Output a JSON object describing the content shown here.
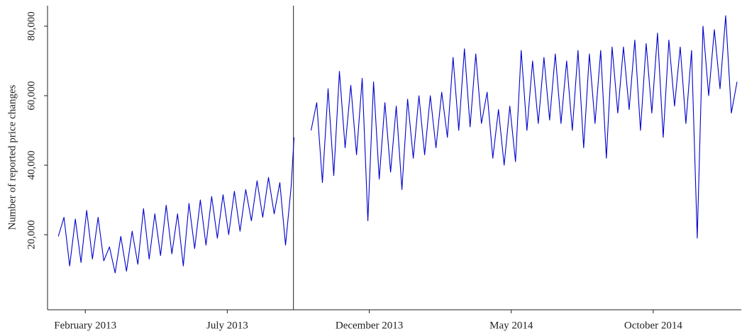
{
  "chart_data": {
    "type": "line",
    "ylabel": "Number of reported price changes",
    "color": "#0000cc",
    "x": [
      0.05,
      0.25,
      0.45,
      0.65,
      0.85,
      1.05,
      1.25,
      1.45,
      1.65,
      1.85,
      2.05,
      2.25,
      2.45,
      2.65,
      2.85,
      3.05,
      3.25,
      3.45,
      3.65,
      3.85,
      4.05,
      4.25,
      4.45,
      4.65,
      4.85,
      5.05,
      5.25,
      5.45,
      5.65,
      5.85,
      6.05,
      6.25,
      6.45,
      6.65,
      6.85,
      7.05,
      7.25,
      7.45,
      7.65,
      7.85,
      8.05,
      8.25,
      8.35,
      8.6,
      8.95,
      9.15,
      9.35,
      9.55,
      9.75,
      9.95,
      10.15,
      10.35,
      10.55,
      10.75,
      10.95,
      11.15,
      11.35,
      11.55,
      11.75,
      11.95,
      12.15,
      12.35,
      12.55,
      12.75,
      12.95,
      13.15,
      13.35,
      13.55,
      13.75,
      13.95,
      14.15,
      14.35,
      14.55,
      14.75,
      14.95,
      15.15,
      15.35,
      15.55,
      15.75,
      15.95,
      16.15,
      16.35,
      16.55,
      16.75,
      16.95,
      17.15,
      17.35,
      17.55,
      17.75,
      17.95,
      18.15,
      18.35,
      18.55,
      18.75,
      18.95,
      19.15,
      19.35,
      19.55,
      19.75,
      19.95,
      20.15,
      20.35,
      20.55,
      20.75,
      20.95,
      21.15,
      21.35,
      21.55,
      21.75,
      21.95,
      22.15,
      22.35,
      22.55,
      22.75,
      22.95,
      23.15,
      23.35,
      23.55,
      23.75,
      23.95
    ],
    "values": [
      19500,
      25000,
      11000,
      24500,
      12000,
      27000,
      13000,
      25000,
      12500,
      16500,
      9000,
      19500,
      9500,
      21000,
      11500,
      27500,
      13000,
      26000,
      14000,
      28500,
      14500,
      26000,
      11000,
      29000,
      16000,
      30000,
      17000,
      31000,
      19000,
      31500,
      20000,
      32500,
      21000,
      33000,
      24000,
      35500,
      25000,
      36500,
      26000,
      35000,
      17000,
      34000,
      48000,
      null,
      50000,
      58000,
      35000,
      62000,
      37000,
      67000,
      45000,
      63000,
      43000,
      65000,
      24000,
      64000,
      36000,
      58000,
      38000,
      57000,
      33000,
      59000,
      42000,
      60000,
      43000,
      60000,
      45000,
      61000,
      48000,
      71000,
      50000,
      73500,
      51000,
      72000,
      52000,
      61000,
      42000,
      56000,
      40000,
      57000,
      41000,
      73000,
      50000,
      70000,
      52000,
      71000,
      53000,
      72000,
      52000,
      70000,
      50000,
      73000,
      45000,
      72000,
      52000,
      73000,
      42000,
      74000,
      55000,
      74000,
      56000,
      76000,
      50000,
      75000,
      55000,
      78000,
      48000,
      76000,
      57000,
      74000,
      52000,
      73000,
      19000,
      80000,
      60000,
      79000,
      62000,
      83000,
      55000,
      64000
    ],
    "xlim": [
      -0.33,
      24.1
    ],
    "xticks": [
      {
        "value": 1,
        "label": "February 2013"
      },
      {
        "value": 6,
        "label": "July 2013"
      },
      {
        "value": 11,
        "label": "December 2013"
      },
      {
        "value": 16,
        "label": "May 2014"
      },
      {
        "value": 21,
        "label": "October 2014"
      }
    ],
    "ylim": [
      -1600,
      85900
    ],
    "yticks": [
      {
        "value": 20000,
        "label": "20,000"
      },
      {
        "value": 40000,
        "label": "40,000"
      },
      {
        "value": 60000,
        "label": "60,000"
      },
      {
        "value": 80000,
        "label": "80,000"
      }
    ],
    "vline": 8.33
  }
}
